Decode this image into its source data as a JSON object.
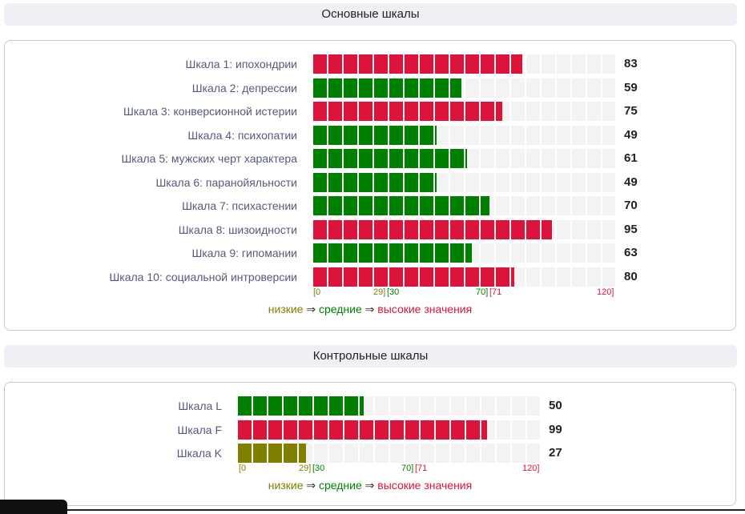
{
  "sections": {
    "main_title": "Основные шкалы",
    "control_title": "Контрольные шкалы"
  },
  "colors": {
    "low": "#808000",
    "mid": "#008000",
    "high": "#dc143c"
  },
  "main_scales": [
    {
      "label": "Шкала 1: ипохондрии",
      "value": 83,
      "level": "high"
    },
    {
      "label": "Шкала 2: депрессии",
      "value": 59,
      "level": "mid"
    },
    {
      "label": "Шкала 3: конверсионной истерии",
      "value": 75,
      "level": "high"
    },
    {
      "label": "Шкала 4: психопатии",
      "value": 49,
      "level": "mid"
    },
    {
      "label": "Шкала 5: мужских черт характера",
      "value": 61,
      "level": "mid"
    },
    {
      "label": "Шкала 6: паранойяльности",
      "value": 49,
      "level": "mid"
    },
    {
      "label": "Шкала 7: психастении",
      "value": 70,
      "level": "mid"
    },
    {
      "label": "Шкала 8: шизоидности",
      "value": 95,
      "level": "high"
    },
    {
      "label": "Шкала 9: гипомании",
      "value": 63,
      "level": "mid"
    },
    {
      "label": "Шкала 10: социальной интроверсии",
      "value": 80,
      "level": "high"
    }
  ],
  "control_scales": [
    {
      "label": "Шкала L",
      "value": 50,
      "level": "mid"
    },
    {
      "label": "Шкала F",
      "value": 99,
      "level": "high"
    },
    {
      "label": "Шкала K",
      "value": 27,
      "level": "low"
    }
  ],
  "scale_max": 120,
  "axis": {
    "low_start": "[0",
    "low_end": "29]",
    "mid_start": "[30",
    "mid_end": "70]",
    "high_start": "[71",
    "high_end": "120]"
  },
  "legend": {
    "low": "низкие",
    "arrow": "⇒",
    "mid": "средние",
    "high": "высокие значения"
  }
}
